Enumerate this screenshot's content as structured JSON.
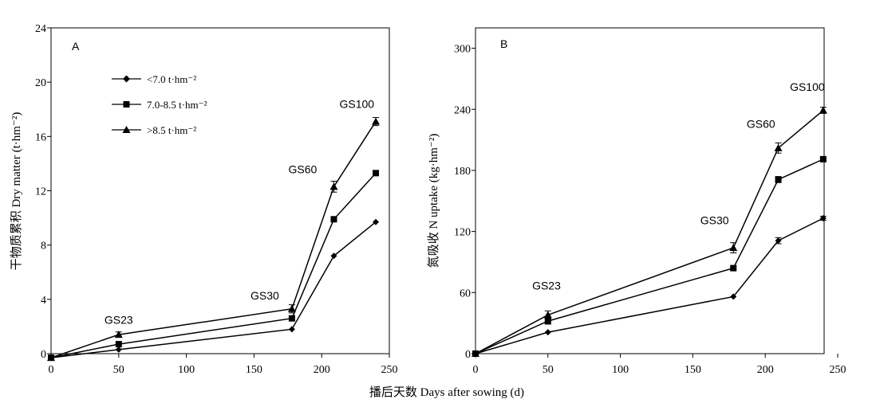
{
  "shared_xlabel": "播后天数 Days after sowing (d)",
  "legend": [
    "<7.0 t·hm⁻²",
    "7.0-8.5 t·hm⁻²",
    ">8.5 t·hm⁻²"
  ],
  "chart_data": [
    {
      "type": "line",
      "panel": "A",
      "ylabel": "干物质累积 Dry matter (t·hm⁻²)",
      "xlim": [
        0,
        250
      ],
      "ylim": [
        0,
        24
      ],
      "xticks": [
        0,
        50,
        100,
        150,
        200,
        250
      ],
      "yticks": [
        0,
        4,
        8,
        12,
        16,
        20,
        24
      ],
      "x": [
        0,
        50,
        178,
        209,
        240
      ],
      "series": [
        {
          "name": "<7.0 t·hm⁻²",
          "marker": "diamond",
          "values": [
            -0.3,
            0.3,
            1.8,
            7.2,
            9.7
          ],
          "err": [
            0,
            0,
            0,
            0,
            0
          ]
        },
        {
          "name": "7.0-8.5 t·hm⁻²",
          "marker": "square",
          "values": [
            -0.3,
            0.7,
            2.6,
            9.9,
            13.3
          ],
          "err": [
            0,
            0,
            0,
            0,
            0
          ]
        },
        {
          "name": ">8.5 t·hm⁻²",
          "marker": "triangle",
          "values": [
            -0.3,
            1.4,
            3.3,
            12.3,
            17.1
          ],
          "err": [
            0,
            0.2,
            0.3,
            0.4,
            0.3
          ]
        }
      ],
      "annotations": [
        {
          "text": "GS23",
          "x": 50,
          "y": 2.2
        },
        {
          "text": "GS30",
          "x": 158,
          "y": 4.0
        },
        {
          "text": "GS60",
          "x": 186,
          "y": 13.3
        },
        {
          "text": "GS100",
          "x": 226,
          "y": 18.1
        }
      ]
    },
    {
      "type": "line",
      "panel": "B",
      "ylabel": "氮吸收 N uptake (kg·hm⁻²)",
      "xlim": [
        0,
        250
      ],
      "ylim": [
        0,
        320
      ],
      "xticks": [
        0,
        50,
        100,
        150,
        200,
        250
      ],
      "yticks": [
        0,
        60,
        120,
        180,
        240,
        300
      ],
      "x": [
        0,
        50,
        178,
        209,
        240
      ],
      "series": [
        {
          "name": "<7.0 t·hm⁻²",
          "marker": "diamond",
          "values": [
            0,
            21,
            56,
            111,
            133
          ],
          "err": [
            0,
            0,
            0,
            3,
            2
          ]
        },
        {
          "name": "7.0-8.5 t·hm⁻²",
          "marker": "square",
          "values": [
            0,
            32,
            84,
            171,
            191
          ],
          "err": [
            0,
            3,
            2,
            3,
            2
          ]
        },
        {
          "name": ">8.5 t·hm⁻²",
          "marker": "triangle",
          "values": [
            0,
            38,
            104,
            202,
            239
          ],
          "err": [
            0,
            4,
            5,
            5,
            3
          ]
        }
      ],
      "annotations": [
        {
          "text": "GS23",
          "x": 49,
          "y": 63
        },
        {
          "text": "GS30",
          "x": 165,
          "y": 127
        },
        {
          "text": "GS60",
          "x": 197,
          "y": 222
        },
        {
          "text": "GS100",
          "x": 229,
          "y": 258
        }
      ]
    }
  ]
}
